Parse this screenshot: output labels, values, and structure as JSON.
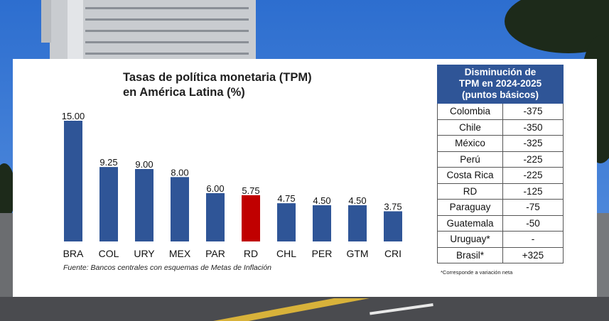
{
  "chart_data": {
    "type": "bar",
    "title_line1": "Tasas de política monetaria (TPM)",
    "title_line2": "en América Latina (%)",
    "categories": [
      "BRA",
      "COL",
      "URY",
      "MEX",
      "PAR",
      "RD",
      "CHL",
      "PER",
      "GTM",
      "CRI"
    ],
    "values": [
      15.0,
      9.25,
      9.0,
      8.0,
      6.0,
      5.75,
      4.75,
      4.5,
      4.5,
      3.75
    ],
    "value_labels": [
      "15.00",
      "9.25",
      "9.00",
      "8.00",
      "6.00",
      "5.75",
      "4.75",
      "4.50",
      "4.50",
      "3.75"
    ],
    "highlight_category": "RD",
    "ylim": [
      0,
      15
    ],
    "grid": false,
    "colors": {
      "bar": "#2f5597",
      "highlight": "#c00000"
    },
    "source": "Fuente: Bancos centrales con esquemas de Metas de Inflación"
  },
  "table": {
    "header_line1": "Disminución de",
    "header_line2": "TPM en 2024-2025",
    "header_line3": "(puntos básicos)",
    "rows": [
      {
        "country": "Colombia",
        "value": "-375"
      },
      {
        "country": "Chile",
        "value": "-350"
      },
      {
        "country": "México",
        "value": "-325"
      },
      {
        "country": "Perú",
        "value": "-225"
      },
      {
        "country": "Costa Rica",
        "value": "-225"
      },
      {
        "country": "RD",
        "value": "-125"
      },
      {
        "country": "Paraguay",
        "value": "-75"
      },
      {
        "country": "Guatemala",
        "value": "-50"
      },
      {
        "country": "Uruguay*",
        "value": "-"
      },
      {
        "country": "Brasil*",
        "value": "+325"
      }
    ],
    "footnote": "*Corresponde a variación neta",
    "header_color": "#2f5597"
  }
}
